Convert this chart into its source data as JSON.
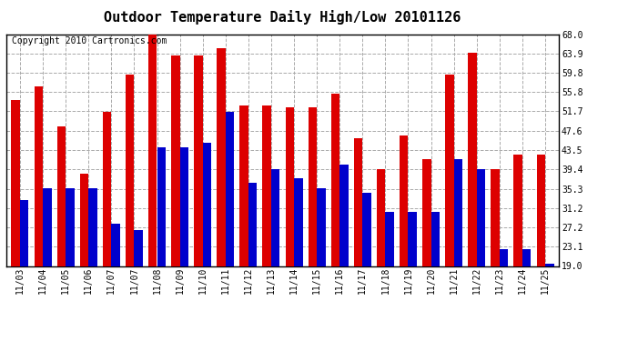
{
  "title": "Outdoor Temperature Daily High/Low 20101126",
  "copyright_text": "Copyright 2010 Cartronics.com",
  "dates": [
    "11/03",
    "11/04",
    "11/05",
    "11/06",
    "11/07",
    "11/07",
    "11/08",
    "11/09",
    "11/10",
    "11/11",
    "11/12",
    "11/13",
    "11/14",
    "11/15",
    "11/16",
    "11/17",
    "11/18",
    "11/19",
    "11/20",
    "11/21",
    "11/22",
    "11/23",
    "11/24",
    "11/25"
  ],
  "highs": [
    54.0,
    57.0,
    48.5,
    38.5,
    51.5,
    59.5,
    68.0,
    63.5,
    63.5,
    65.0,
    53.0,
    53.0,
    52.5,
    52.5,
    55.5,
    46.0,
    39.5,
    46.5,
    41.5,
    59.5,
    64.0,
    39.5,
    42.5,
    42.5
  ],
  "lows": [
    33.0,
    35.5,
    35.5,
    35.5,
    28.0,
    26.5,
    44.0,
    44.0,
    45.0,
    51.5,
    36.5,
    39.5,
    37.5,
    35.5,
    40.5,
    34.5,
    30.5,
    30.5,
    30.5,
    41.5,
    39.5,
    22.5,
    22.5,
    19.5
  ],
  "ylim": [
    19.0,
    68.0
  ],
  "yticks": [
    19.0,
    23.1,
    27.2,
    31.2,
    35.3,
    39.4,
    43.5,
    47.6,
    51.7,
    55.8,
    59.8,
    63.9,
    68.0
  ],
  "high_color": "#dd0000",
  "low_color": "#0000cc",
  "bg_color": "#ffffff",
  "grid_color": "#aaaaaa",
  "title_fontsize": 11,
  "copyright_fontsize": 7,
  "tick_fontsize": 7
}
